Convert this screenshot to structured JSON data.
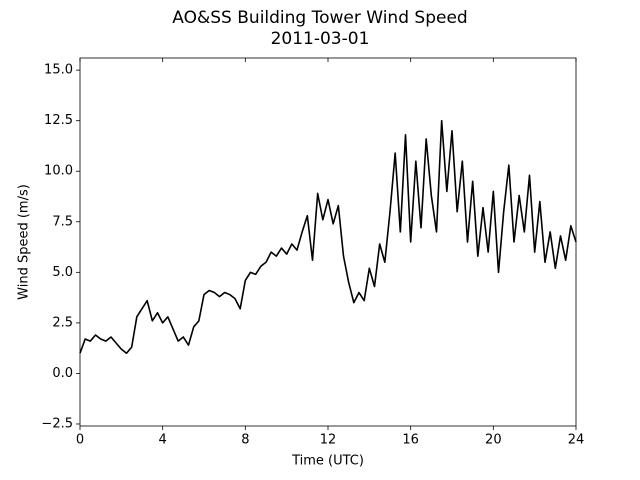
{
  "chart_data": {
    "type": "line",
    "title": "AO&SS Building Tower Wind Speed",
    "subtitle": "2011-03-01",
    "x_label": "Time (UTC)",
    "y_label": "Wind Speed (m/s)",
    "color": "#000000",
    "x": [
      0,
      0.25,
      0.5,
      0.75,
      1,
      1.25,
      1.5,
      1.75,
      2,
      2.25,
      2.5,
      2.75,
      3,
      3.25,
      3.5,
      3.75,
      4,
      4.25,
      4.5,
      4.75,
      5,
      5.25,
      5.5,
      5.75,
      6,
      6.25,
      6.5,
      6.75,
      7,
      7.25,
      7.5,
      7.75,
      8,
      8.25,
      8.5,
      8.75,
      9,
      9.25,
      9.5,
      9.75,
      10,
      10.25,
      10.5,
      10.75,
      11,
      11.25,
      11.5,
      11.75,
      12,
      12.25,
      12.5,
      12.75,
      13,
      13.25,
      13.5,
      13.75,
      14,
      14.25,
      14.5,
      14.75,
      15,
      15.25,
      15.5,
      15.75,
      16,
      16.25,
      16.5,
      16.75,
      17,
      17.25,
      17.5,
      17.75,
      18,
      18.25,
      18.5,
      18.75,
      19,
      19.25,
      19.5,
      19.75,
      20,
      20.25,
      20.5,
      20.75,
      21,
      21.25,
      21.5,
      21.75,
      22,
      22.25,
      22.5,
      22.75,
      23,
      23.25,
      23.5,
      23.75,
      24
    ],
    "values": [
      1.0,
      1.7,
      1.6,
      1.9,
      1.7,
      1.6,
      1.8,
      1.5,
      1.2,
      1.0,
      1.3,
      2.8,
      3.2,
      3.6,
      2.6,
      3.0,
      2.5,
      2.8,
      2.2,
      1.6,
      1.8,
      1.4,
      2.3,
      2.6,
      3.9,
      4.1,
      4.0,
      3.8,
      4.0,
      3.9,
      3.7,
      3.2,
      4.6,
      5.0,
      4.9,
      5.3,
      5.5,
      6.0,
      5.8,
      6.2,
      5.9,
      6.4,
      6.1,
      7.0,
      7.8,
      5.6,
      8.9,
      7.6,
      8.6,
      7.4,
      8.3,
      5.8,
      4.5,
      3.5,
      4.0,
      3.6,
      5.2,
      4.3,
      6.4,
      5.5,
      8.0,
      10.9,
      7.0,
      11.8,
      6.5,
      10.5,
      7.2,
      11.6,
      8.8,
      7.0,
      12.5,
      9.0,
      12.0,
      8.0,
      10.5,
      6.5,
      9.5,
      5.8,
      8.2,
      6.0,
      9.0,
      5.0,
      8.0,
      10.3,
      6.5,
      8.8,
      7.0,
      9.8,
      6.0,
      8.5,
      5.5,
      7.0,
      5.2,
      6.8,
      5.6,
      7.3,
      6.5
    ],
    "xlim": [
      0,
      24
    ],
    "xticks": [
      0,
      4,
      8,
      12,
      16,
      20,
      24
    ],
    "ylim": [
      -2.6,
      15.6
    ],
    "yticks": [
      {
        "value": -2.5,
        "label": "−2.5"
      },
      {
        "value": 0,
        "label": "0.0"
      },
      2.5,
      {
        "value": 5,
        "label": "5.0"
      },
      7.5,
      {
        "value": 10,
        "label": "10.0"
      },
      12.5,
      {
        "value": 15,
        "label": "15.0"
      }
    ]
  }
}
